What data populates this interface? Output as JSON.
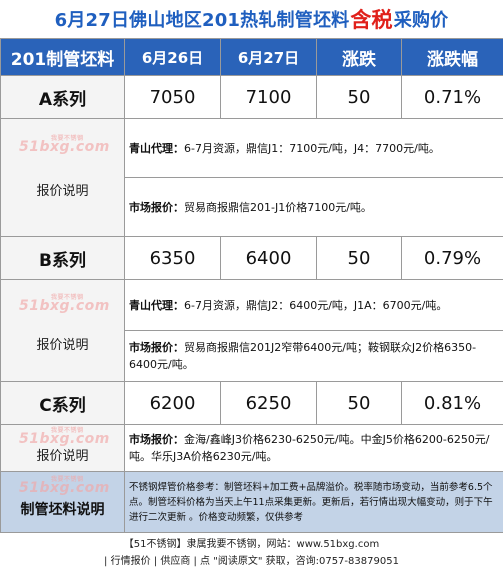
{
  "title": {
    "part1": "6月27日佛山地区201热轧制管坯料",
    "highlight": "含税",
    "part2": "采购价"
  },
  "headers": [
    "201制管坯料",
    "6月26日",
    "6月27日",
    "涨跌",
    "涨跌幅"
  ],
  "watermark": {
    "text": "51bxg.com",
    "small": "我要不锈钢"
  },
  "series": [
    {
      "name": "A系列",
      "prev": "7050",
      "curr": "7100",
      "change": "50",
      "pct": "0.71%",
      "explain_label": "报价说明",
      "notes": [
        {
          "head": "青山代理：",
          "body": "6-7月资源，鼎信J1：7100元/吨，J4：7700元/吨。"
        },
        {
          "head": "市场报价：",
          "body": "贸易商报鼎信201-J1价格7100元/吨。"
        }
      ]
    },
    {
      "name": "B系列",
      "prev": "6350",
      "curr": "6400",
      "change": "50",
      "pct": "0.79%",
      "explain_label": "报价说明",
      "notes": [
        {
          "head": "青山代理：",
          "body": "6-7月资源，鼎信J2：6400元/吨，J1A：6700元/吨。"
        },
        {
          "head": "市场报价：",
          "body": "贸易商报鼎信201J2窄带6400元/吨；鞍钢联众J2价格6350-6400元/吨。"
        }
      ]
    },
    {
      "name": "C系列",
      "prev": "6200",
      "curr": "6250",
      "change": "50",
      "pct": "0.81%",
      "explain_label": "报价说明",
      "notes": [
        {
          "head": "市场报价：",
          "body": "金海/鑫峰J3价格6230-6250元/吨。中金J5价格6200-6250元/吨。华乐J3A价格6230元/吨。"
        }
      ]
    }
  ],
  "bottom": {
    "label": "制管坯料说明",
    "text": "不锈钢焊管价格参考：制管坯料+加工费+品牌溢价。税率随市场变动，当前参考6.5个点。制管坯料价格为当天上午11点采集更新。更新后，若行情出现大幅变动，则于下午进行二次更新 。价格变动频繁，仅供参考"
  },
  "footer": {
    "line1": "【51不锈钢】隶属我要不锈钢，网站：www.51bxg.com",
    "line2": "| 行情报价 | 供应商 | 点 \"阅读原文\" 获取，咨询:0757-83879051"
  }
}
